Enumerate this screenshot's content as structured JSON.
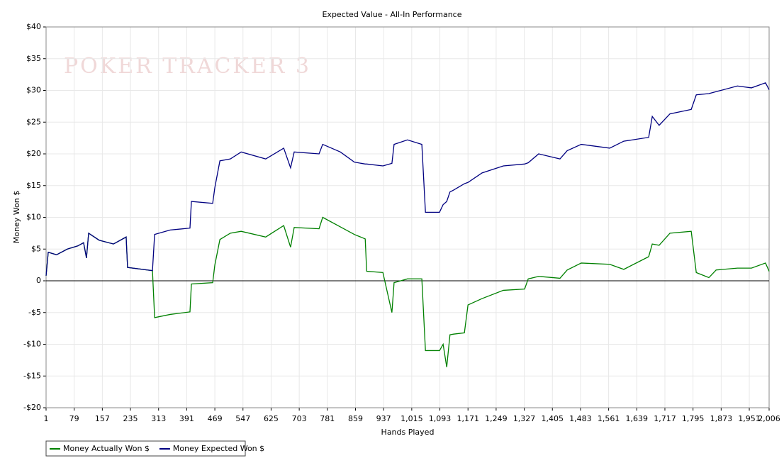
{
  "chart_data": {
    "type": "line",
    "title": "Expected Value - All-In Performance",
    "watermark": "POKER TRACKER 3",
    "xlabel": "Hands Played",
    "ylabel": "Money Won $",
    "x": [
      1,
      7,
      30,
      60,
      89,
      105,
      113,
      119,
      148,
      188,
      223,
      227,
      296,
      302,
      345,
      400,
      404,
      463,
      469,
      483,
      512,
      542,
      610,
      660,
      679,
      689,
      758,
      768,
      817,
      856,
      886,
      890,
      935,
      960,
      966,
      1003,
      1043,
      1053,
      1092,
      1102,
      1112,
      1121,
      1131,
      1161,
      1171,
      1210,
      1269,
      1328,
      1338,
      1367,
      1426,
      1446,
      1485,
      1564,
      1603,
      1672,
      1682,
      1701,
      1731,
      1790,
      1804,
      1839,
      1859,
      1918,
      1957,
      1996,
      2006
    ],
    "series": [
      {
        "name": "Money Actually Won $",
        "color": "#008000",
        "values": [
          0.8,
          4.5,
          4.1,
          5,
          5.5,
          6,
          3.6,
          7.5,
          6.4,
          5.8,
          6.9,
          2.1,
          1.6,
          -5.8,
          -5.3,
          -4.9,
          -0.5,
          -0.3,
          2.5,
          6.5,
          7.5,
          7.8,
          6.9,
          8.7,
          5.3,
          8.4,
          8.2,
          10,
          8.5,
          7.3,
          6.6,
          1.5,
          1.3,
          -5,
          -0.3,
          0.3,
          0.3,
          -11,
          -11,
          -10,
          -13.6,
          -8.5,
          -8.4,
          -8.2,
          -3.8,
          -2.8,
          -1.5,
          -1.3,
          0.3,
          0.7,
          0.4,
          1.7,
          2.8,
          2.6,
          1.8,
          3.8,
          5.8,
          5.6,
          7.5,
          7.8,
          1.3,
          0.5,
          1.7,
          2,
          2,
          2.8,
          1.5
        ]
      },
      {
        "name": "Money Expected Won $",
        "color": "#000080",
        "values": [
          0.8,
          4.5,
          4.1,
          5,
          5.5,
          6,
          3.6,
          7.5,
          6.4,
          5.8,
          6.9,
          2.1,
          1.6,
          7.3,
          8,
          8.3,
          12.5,
          12.2,
          14.7,
          18.9,
          19.2,
          20.3,
          19.2,
          20.9,
          17.8,
          20.3,
          20,
          21.5,
          20.3,
          18.7,
          18.4,
          18.4,
          18.1,
          18.5,
          21.5,
          22.2,
          21.5,
          10.8,
          10.8,
          12,
          12.5,
          14,
          14.3,
          15.3,
          15.5,
          17,
          18.1,
          18.4,
          18.6,
          20,
          19.2,
          20.5,
          21.5,
          20.9,
          22,
          22.6,
          25.9,
          24.5,
          26.3,
          27,
          29.3,
          29.5,
          29.8,
          30.7,
          30.4,
          31.2,
          30.1
        ]
      }
    ],
    "xlim": [
      1,
      2006
    ],
    "xticks": [
      1,
      79,
      157,
      235,
      313,
      391,
      469,
      547,
      625,
      703,
      781,
      859,
      937,
      {
        "value": 1015,
        "label": "1,015"
      },
      {
        "value": 1093,
        "label": "1,093"
      },
      {
        "value": 1171,
        "label": "1,171"
      },
      {
        "value": 1249,
        "label": "1,249"
      },
      {
        "value": 1327,
        "label": "1,327"
      },
      {
        "value": 1405,
        "label": "1,405"
      },
      {
        "value": 1483,
        "label": "1,483"
      },
      {
        "value": 1561,
        "label": "1,561"
      },
      {
        "value": 1639,
        "label": "1,639"
      },
      {
        "value": 1717,
        "label": "1,717"
      },
      {
        "value": 1795,
        "label": "1,795"
      },
      {
        "value": 1873,
        "label": "1,873"
      },
      {
        "value": 1951,
        "label": "1,951"
      },
      {
        "value": 2006,
        "label": "2,006"
      }
    ],
    "ylim": [
      -20,
      40
    ],
    "yticks": [
      {
        "value": -20,
        "label": "-$20"
      },
      {
        "value": -15,
        "label": "-$15"
      },
      {
        "value": -10,
        "label": "-$10"
      },
      {
        "value": -5,
        "label": "-$5"
      },
      0,
      {
        "value": 5,
        "label": "$5"
      },
      {
        "value": 10,
        "label": "$10"
      },
      {
        "value": 15,
        "label": "$15"
      },
      {
        "value": 20,
        "label": "$20"
      },
      {
        "value": 25,
        "label": "$25"
      },
      {
        "value": 30,
        "label": "$30"
      },
      {
        "value": 35,
        "label": "$35"
      },
      {
        "value": 40,
        "label": "$40"
      }
    ],
    "grid": true,
    "legend": "bottom-left"
  }
}
